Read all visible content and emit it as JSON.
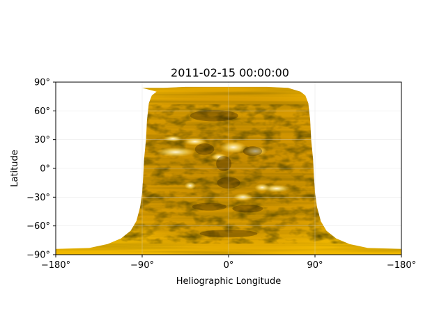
{
  "chart_data": {
    "type": "heatmap",
    "title": "2011-02-15 00:00:00",
    "xlabel": "Heliographic Longitude",
    "ylabel": "Latitude",
    "xlim": [
      -180,
      180
    ],
    "ylim": [
      -90,
      90
    ],
    "x_tick_labels": [
      "−180°",
      "−90°",
      "0°",
      "90°",
      "−180°"
    ],
    "y_tick_labels": [
      "−90°",
      "−60°",
      "−30°",
      "0°",
      "30°",
      "60°",
      "90°"
    ],
    "x_ticks": [
      -180,
      -90,
      0,
      90,
      180
    ],
    "y_ticks": [
      -90,
      -60,
      -30,
      0,
      30,
      60,
      90
    ],
    "grid": true,
    "colormap": "sdoaia171 (gold)",
    "background_color": "#ffffff",
    "projection": "Carrington heliographic map",
    "colors": {
      "dark": "#1a1200",
      "mid": "#b07a00",
      "bright": "#f5c400",
      "highlight": "#fff6d0",
      "grid": "#d9d9d9"
    }
  }
}
